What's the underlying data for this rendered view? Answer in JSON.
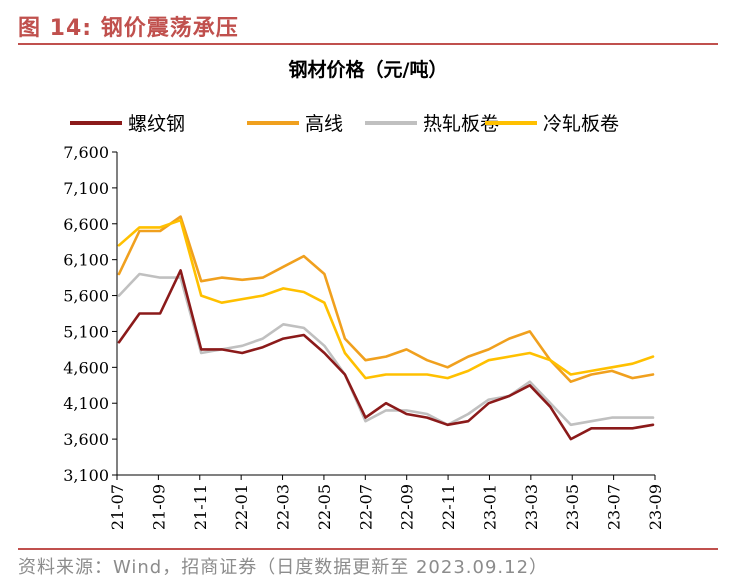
{
  "figure": {
    "number_label": "图 14:",
    "title": "钢价震荡承压",
    "source": "资料来源：Wind，招商证券（日度数据更新至 2023.09.12）"
  },
  "colors": {
    "accent": "#c0504d",
    "series": [
      "#8b1a1a",
      "#f0a01e",
      "#c0c0c0",
      "#ffc000"
    ]
  },
  "chart_data": {
    "type": "line",
    "title": "钢材价格（元/吨）",
    "xlabel": "",
    "ylabel": "",
    "ylim": [
      3100,
      7600
    ],
    "yticks": [
      "3,100",
      "3,600",
      "4,100",
      "4,600",
      "5,100",
      "5,600",
      "6,100",
      "6,600",
      "7,100",
      "7,600"
    ],
    "xticks": [
      "21-07",
      "21-09",
      "21-11",
      "22-01",
      "22-03",
      "22-05",
      "22-07",
      "22-09",
      "22-11",
      "23-01",
      "23-03",
      "23-05",
      "23-07",
      "23-09"
    ],
    "legend_position": "top",
    "grid": false,
    "x": [
      "21-07",
      "21-08",
      "21-09",
      "21-10",
      "21-11",
      "21-12",
      "22-01",
      "22-02",
      "22-03",
      "22-04",
      "22-05",
      "22-06",
      "22-07",
      "22-08",
      "22-09",
      "22-10",
      "22-11",
      "22-12",
      "23-01",
      "23-02",
      "23-03",
      "23-04",
      "23-05",
      "23-06",
      "23-07",
      "23-08",
      "23-09"
    ],
    "series": [
      {
        "name": "螺纹钢",
        "values": [
          4950,
          5350,
          5350,
          5950,
          4850,
          4850,
          4800,
          4880,
          5000,
          5050,
          4800,
          4500,
          3900,
          4100,
          3950,
          3900,
          3800,
          3850,
          4100,
          4200,
          4350,
          4050,
          3600,
          3750,
          3750,
          3750,
          3800
        ]
      },
      {
        "name": "高线",
        "values": [
          5900,
          6500,
          6500,
          6700,
          5800,
          5850,
          5820,
          5850,
          6000,
          6150,
          5900,
          5000,
          4700,
          4750,
          4850,
          4700,
          4600,
          4750,
          4850,
          5000,
          5100,
          4700,
          4400,
          4500,
          4550,
          4450,
          4500
        ]
      },
      {
        "name": "热轧板卷",
        "values": [
          5600,
          5900,
          5850,
          5850,
          4800,
          4850,
          4900,
          5000,
          5200,
          5150,
          4900,
          4500,
          3850,
          4000,
          4000,
          3950,
          3800,
          3950,
          4150,
          4200,
          4400,
          4100,
          3800,
          3850,
          3900,
          3900,
          3900
        ]
      },
      {
        "name": "冷轧板卷",
        "values": [
          6300,
          6550,
          6550,
          6650,
          5600,
          5500,
          5550,
          5600,
          5700,
          5650,
          5500,
          4800,
          4450,
          4500,
          4500,
          4500,
          4450,
          4550,
          4700,
          4750,
          4800,
          4700,
          4500,
          4550,
          4600,
          4650,
          4750
        ]
      }
    ]
  }
}
